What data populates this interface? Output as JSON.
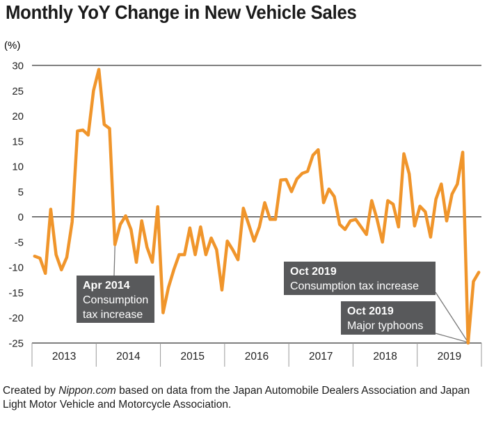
{
  "title": "Monthly YoY Change in New Vehicle Sales",
  "caption": {
    "prefix": "Created by ",
    "source": "Nippon.com",
    "suffix": " based on data from the Japan Automobile Dealers Association and Japan Light Motor Vehicle and Motorcycle Association."
  },
  "colors": {
    "line": "#f0952b",
    "annotation_bg": "#58595b",
    "annotation_text": "#ffffff",
    "axis": "#222222"
  },
  "chart_data": {
    "type": "line",
    "title": "Monthly YoY Change in New Vehicle Sales",
    "ylabel": "(%)",
    "xlabel": "",
    "ylim": [
      -25,
      30
    ],
    "yticks": [
      "30",
      "25",
      "20",
      "15",
      "10",
      "5",
      "0",
      "-5",
      "-10",
      "-15",
      "-20",
      "-25"
    ],
    "year_labels": [
      "2013",
      "2014",
      "2015",
      "2016",
      "2017",
      "2018",
      "2019"
    ],
    "grid": "y-major only at 0 and 30",
    "series": [
      {
        "values": [
          -7.8,
          -8.2,
          -11.2,
          1.5,
          -7.5,
          -10.5,
          -8.0,
          -1.0,
          17.0,
          17.2,
          16.2,
          25.0,
          29.2,
          18.3,
          17.5,
          -5.5,
          -1.5,
          0.2,
          -2.5,
          -9.0,
          -0.8,
          -6.0,
          -9.0,
          2.0,
          -19.0,
          -14.0,
          -10.5,
          -7.5,
          -7.5,
          -2.2,
          -7.5,
          -2.0,
          -7.5,
          -4.2,
          -6.5,
          -14.5,
          -4.8,
          -6.5,
          -8.5,
          1.7,
          -1.5,
          -4.8,
          -2.0,
          2.8,
          -0.5,
          -0.5,
          7.3,
          7.4,
          5.0,
          7.5,
          8.6,
          9.0,
          12.2,
          13.3,
          2.8,
          5.5,
          4.0,
          -1.5,
          -2.5,
          -0.8,
          -0.5,
          -2.0,
          -3.5,
          3.2,
          -0.5,
          -5.0,
          3.2,
          2.5,
          -2.0,
          12.5,
          8.5,
          -1.8,
          2.1,
          1.0,
          -4.0,
          3.5,
          6.5,
          -0.8,
          4.5,
          6.5,
          12.8,
          -25.0,
          -12.8,
          -11.0
        ]
      }
    ],
    "annotations": [
      {
        "lines": [
          "Apr 2014",
          "Consumption",
          "tax increase"
        ],
        "month_index": 15
      },
      {
        "lines": [
          "Oct 2019",
          "Consumption tax increase"
        ],
        "month_index": 81
      },
      {
        "lines": [
          "Oct 2019",
          "Major typhoons"
        ],
        "month_index": 81
      }
    ]
  }
}
